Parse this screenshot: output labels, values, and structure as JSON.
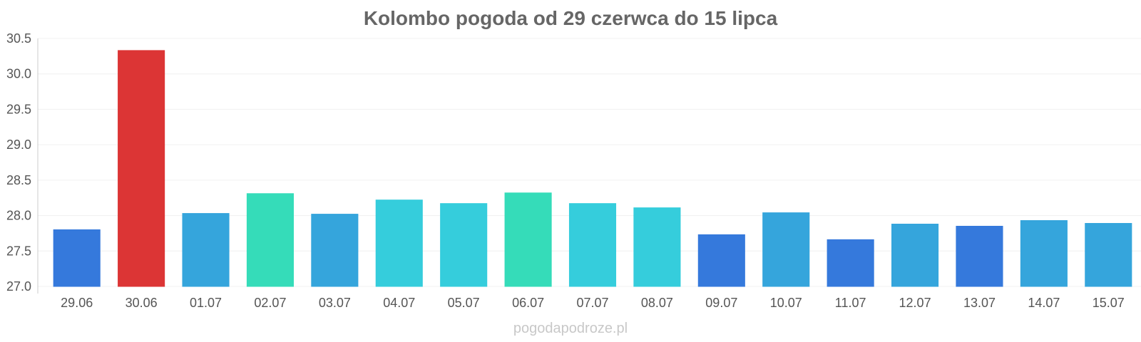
{
  "chart_data": {
    "type": "bar",
    "title": "Kolombo pogoda od 29 czerwca do 15 lipca",
    "xlabel": "",
    "ylabel": "",
    "ylim": [
      27.0,
      30.5
    ],
    "yticks": [
      "27.0",
      "27.5",
      "28.0",
      "28.5",
      "29.0",
      "29.5",
      "30.0",
      "30.5"
    ],
    "grid": true,
    "categories": [
      "29.06",
      "30.06",
      "01.07",
      "02.07",
      "03.07",
      "04.07",
      "05.07",
      "06.07",
      "07.07",
      "08.07",
      "09.07",
      "10.07",
      "11.07",
      "12.07",
      "13.07",
      "14.07",
      "15.07"
    ],
    "values": [
      27.8,
      30.33,
      28.03,
      28.31,
      28.02,
      28.22,
      28.17,
      28.32,
      28.17,
      28.11,
      27.73,
      28.04,
      27.66,
      27.88,
      27.85,
      27.93,
      27.89
    ],
    "colors": [
      "#3579dc",
      "#dc3535",
      "#35a5dc",
      "#35dcb9",
      "#35a5dc",
      "#35cddc",
      "#35cddc",
      "#35dcb9",
      "#35cddc",
      "#35cddc",
      "#3579dc",
      "#35a5dc",
      "#3579dc",
      "#35a5dc",
      "#3579dc",
      "#35a5dc",
      "#35a5dc"
    ]
  },
  "watermark": "pogodapodroze.pl"
}
